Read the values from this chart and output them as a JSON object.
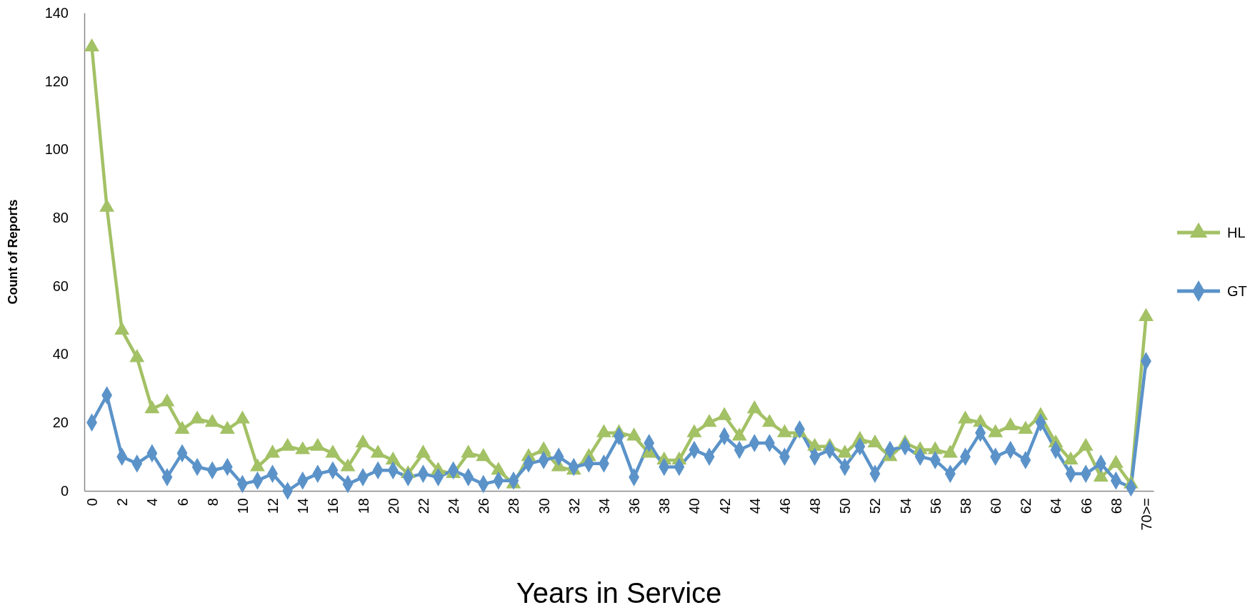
{
  "chart_data": {
    "type": "line",
    "xlabel": "Years in Service",
    "ylabel": "Count of Reports",
    "categories": [
      "0",
      null,
      "2",
      null,
      "4",
      null,
      "6",
      null,
      "8",
      null,
      "10",
      null,
      "12",
      null,
      "14",
      null,
      "16",
      null,
      "18",
      null,
      "20",
      null,
      "22",
      null,
      "24",
      null,
      "26",
      null,
      "28",
      null,
      "30",
      null,
      "32",
      null,
      "34",
      null,
      "36",
      null,
      "38",
      null,
      "40",
      null,
      "42",
      null,
      "44",
      null,
      "46",
      null,
      "48",
      null,
      "50",
      null,
      "52",
      null,
      "54",
      null,
      "56",
      null,
      "58",
      null,
      "60",
      null,
      "62",
      null,
      "64",
      null,
      "66",
      null,
      "68",
      null,
      "70>="
    ],
    "ylim": [
      0,
      140
    ],
    "yticks": [
      0,
      20,
      40,
      60,
      80,
      100,
      120,
      140
    ],
    "grid": false,
    "legend": "right",
    "line_style": "solid",
    "series": [
      {
        "name": "HL",
        "color": "#a3c165",
        "marker": "triangle",
        "values": [
          130,
          83,
          47,
          39,
          24,
          26,
          18,
          21,
          20,
          18,
          21,
          7,
          11,
          13,
          12,
          13,
          11,
          7,
          14,
          11,
          9,
          5,
          11,
          6,
          5,
          11,
          10,
          6,
          2,
          10,
          12,
          7,
          6,
          10,
          17,
          17,
          16,
          11,
          9,
          9,
          17,
          20,
          22,
          16,
          24,
          20,
          17,
          17,
          13,
          13,
          11,
          15,
          14,
          10,
          14,
          12,
          12,
          11,
          21,
          20,
          17,
          19,
          18,
          22,
          14,
          9,
          13,
          4,
          8,
          2,
          51
        ]
      },
      {
        "name": "GT",
        "color": "#5b93c9",
        "marker": "diamond",
        "values": [
          20,
          28,
          10,
          8,
          11,
          4,
          11,
          7,
          6,
          7,
          2,
          3,
          5,
          0,
          3,
          5,
          6,
          2,
          4,
          6,
          6,
          4,
          5,
          4,
          6,
          4,
          2,
          3,
          3,
          8,
          9,
          10,
          7,
          8,
          8,
          16,
          4,
          14,
          7,
          7,
          12,
          10,
          16,
          12,
          14,
          14,
          10,
          18,
          10,
          12,
          7,
          13,
          5,
          12,
          13,
          10,
          9,
          5,
          10,
          17,
          10,
          12,
          9,
          20,
          12,
          5,
          5,
          8,
          3,
          1,
          38
        ]
      }
    ]
  }
}
